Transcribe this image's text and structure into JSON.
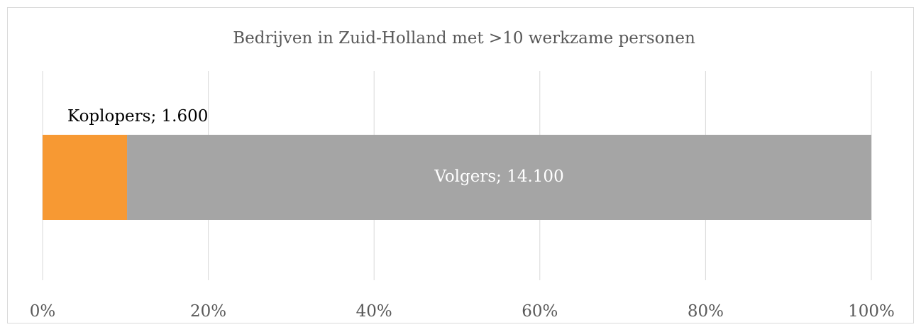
{
  "chart_data": {
    "type": "bar",
    "orientation": "horizontal",
    "stacked": "percent",
    "title": "Bedrijven in Zuid-Holland met >10 werkzame personen",
    "categories": [
      null
    ],
    "series": [
      {
        "color": "#f79933",
        "values": [
          1600
        ],
        "value_labels": [
          "Koplopers;  1.600"
        ]
      },
      {
        "color": "#a5a5a5",
        "values": [
          14100
        ],
        "value_labels": [
          "Volgers;  14.100"
        ]
      }
    ],
    "xlim": [
      0,
      100
    ],
    "xticks": [
      {
        "value": 0,
        "label": "0%"
      },
      {
        "value": 20,
        "label": "20%"
      },
      {
        "value": 40,
        "label": "40%"
      },
      {
        "value": 60,
        "label": "60%"
      },
      {
        "value": 80,
        "label": "80%"
      },
      {
        "value": 100,
        "label": "100%"
      }
    ],
    "grid": true
  }
}
